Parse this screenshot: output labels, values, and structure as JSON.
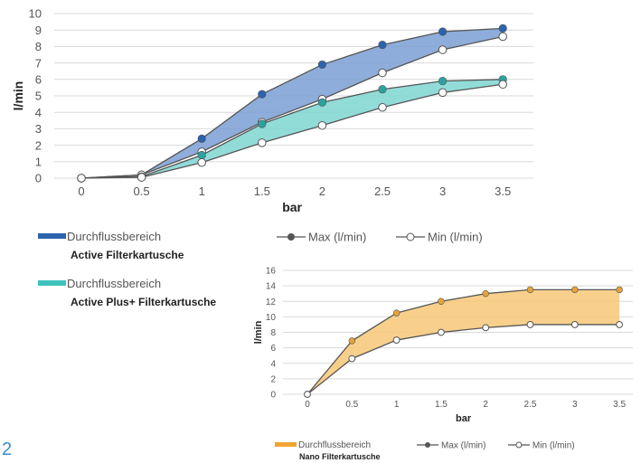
{
  "page": {
    "number": "2"
  },
  "colors": {
    "active_fill": "#7a9fd4",
    "active_marker": "#2c63ad",
    "active_swatch": "#2c63ad",
    "plus_fill": "#7fd6d1",
    "plus_marker": "#2aa39d",
    "plus_swatch": "#3fc3bd",
    "nano_fill": "#f7c878",
    "nano_marker": "#e8a23a",
    "nano_swatch": "#f0a530",
    "line": "#555555",
    "grid": "#d9d9d9",
    "tick_text": "#555555",
    "axis_text": "#222222"
  },
  "chart_data": [
    {
      "id": "chart-main",
      "type": "area",
      "xlabel": "bar",
      "ylabel": "l/min",
      "categories": [
        "0",
        "0.5",
        "1",
        "1.5",
        "2",
        "2.5",
        "3",
        "3.5"
      ],
      "ylim": [
        0,
        10
      ],
      "yticks": [
        "0",
        "1",
        "2",
        "3",
        "4",
        "5",
        "6",
        "7",
        "8",
        "9",
        "10"
      ],
      "grid": true,
      "legend_series": {
        "max_label": "Max (l/min)",
        "min_label": "Min (l/min)"
      },
      "ranges": [
        {
          "key": "active",
          "legend_title": "Durchflussbereich",
          "legend_subtitle": "Active Filterkartusche",
          "max": [
            0,
            0.2,
            2.4,
            5.1,
            6.9,
            8.1,
            8.9,
            9.1
          ],
          "min": [
            0,
            0.2,
            1.6,
            3.4,
            4.8,
            6.4,
            7.8,
            8.6
          ]
        },
        {
          "key": "plus",
          "legend_title": "Durchflussbereich",
          "legend_subtitle": "Active Plus+ Filterkartusche",
          "max": [
            0,
            0.1,
            1.4,
            3.3,
            4.6,
            5.4,
            5.9,
            6.0
          ],
          "min": [
            0,
            0.05,
            0.95,
            2.15,
            3.2,
            4.3,
            5.2,
            5.7
          ]
        }
      ]
    },
    {
      "id": "chart-nano",
      "type": "area",
      "xlabel": "bar",
      "ylabel": "l/min",
      "categories": [
        "0",
        "0.5",
        "1",
        "1.5",
        "2",
        "2.5",
        "3",
        "3.5"
      ],
      "ylim": [
        0,
        16
      ],
      "yticks": [
        "0",
        "2",
        "4",
        "6",
        "8",
        "10",
        "12",
        "14",
        "16"
      ],
      "grid": true,
      "legend_series": {
        "max_label": "Max (l/min)",
        "min_label": "Min (l/min)"
      },
      "ranges": [
        {
          "key": "nano",
          "legend_title": "Durchflussbereich",
          "legend_subtitle": "Nano Filterkartusche",
          "max": [
            0,
            6.9,
            10.5,
            12.0,
            13.0,
            13.5,
            13.5,
            13.5
          ],
          "min": [
            0,
            4.6,
            7.0,
            8.0,
            8.6,
            9.0,
            9.0,
            9.0
          ]
        }
      ]
    }
  ]
}
